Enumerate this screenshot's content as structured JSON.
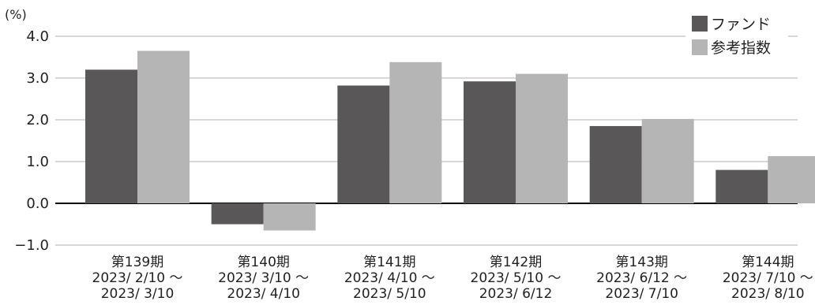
{
  "chart_data": {
    "type": "bar",
    "unit_label": "(%)",
    "categories": [
      {
        "period": "第139期",
        "from": "2023/ 2/10 ～",
        "to": "2023/ 3/10"
      },
      {
        "period": "第140期",
        "from": "2023/ 3/10 ～",
        "to": "2023/ 4/10"
      },
      {
        "period": "第141期",
        "from": "2023/ 4/10 ～",
        "to": "2023/ 5/10"
      },
      {
        "period": "第142期",
        "from": "2023/ 5/10 ～",
        "to": "2023/ 6/12"
      },
      {
        "period": "第143期",
        "from": "2023/ 6/12 ～",
        "to": "2023/ 7/10"
      },
      {
        "period": "第144期",
        "from": "2023/ 7/10 ～",
        "to": "2023/ 8/10"
      }
    ],
    "series": [
      {
        "name": "ファンド",
        "color": "#595757",
        "values": [
          3.2,
          -0.5,
          2.82,
          2.92,
          1.85,
          0.8
        ]
      },
      {
        "name": "参考指数",
        "color": "#b5b5b6",
        "values": [
          3.65,
          -0.65,
          3.38,
          3.1,
          2.02,
          1.13
        ]
      }
    ],
    "ylim": [
      -1.0,
      4.0
    ],
    "yticks": [
      "4.0",
      "3.0",
      "2.0",
      "1.0",
      "0.0",
      "−1.0"
    ],
    "ytick_values": [
      4.0,
      3.0,
      2.0,
      1.0,
      0.0,
      -1.0
    ],
    "grid": true,
    "legend_position": "top-right"
  }
}
